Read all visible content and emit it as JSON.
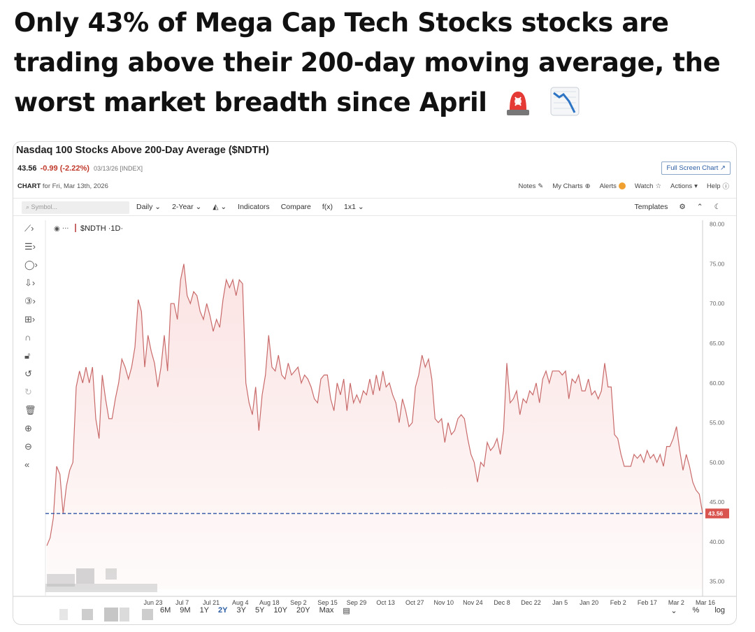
{
  "headline": "Only 43% of Mega Cap Tech Stocks stocks are trading above their 200-day moving average, the worst market breadth since April",
  "emojis": [
    "rotating-light-icon",
    "chart-decreasing-icon"
  ],
  "chart_header": {
    "title": "Nasdaq 100 Stocks Above 200-Day Average ($NDTH)",
    "price": "43.56",
    "change": "-0.99 (-2.22%)",
    "meta": "03/13/26 [INDEX]",
    "fullscreen_label": "Full Screen Chart ↗",
    "chart_label": "CHART",
    "chart_for": "for Fri, Mar 13th, 2026"
  },
  "top_links": [
    "Notes",
    "My Charts",
    "Alerts",
    "Watch",
    "Actions",
    "Help"
  ],
  "toolbar": {
    "symbol_placeholder": "Symbol...",
    "items": [
      "Daily ⌄",
      "2-Year ⌄",
      "⌄",
      "Indicators",
      "Compare",
      "f(x)",
      "1x1 ⌄"
    ],
    "templates": "Templates"
  },
  "side_tools": [
    "line-tool-icon",
    "text-tool-icon",
    "shape-tool-icon",
    "arrow-tool-icon",
    "number-tool-icon",
    "measure-tool-icon",
    "magnet-icon",
    "lock-icon",
    "undo-icon",
    "redo-icon",
    "trash-icon",
    "zoom-in-icon",
    "zoom-out-icon",
    "collapse-icon"
  ],
  "periods": [
    "6M",
    "9M",
    "1Y",
    "2Y",
    "3Y",
    "5Y",
    "10Y",
    "20Y",
    "Max"
  ],
  "active_period": "2Y",
  "bottom_right": [
    "%",
    "log"
  ],
  "colors": {
    "line": "#c96a6a",
    "fill": "#fbe3e3",
    "dash": "#3a5fa8",
    "last_price_bg": "#d9534f"
  },
  "chart_data": {
    "type": "area",
    "series_label": "$NDTH ·1D·",
    "x_tick_labels": [
      "Jun 23",
      "Jul 7",
      "Jul 21",
      "Aug 4",
      "Aug 18",
      "Sep 2",
      "Sep 15",
      "Sep 29",
      "Oct 13",
      "Oct 27",
      "Nov 10",
      "Nov 24",
      "Dec 8",
      "Dec 22",
      "Jan 5",
      "Jan 20",
      "Feb 2",
      "Feb 17",
      "Mar 2",
      "Mar 16"
    ],
    "y_ticks": [
      35,
      40,
      45,
      50,
      55,
      60,
      65,
      70,
      75,
      80
    ],
    "ylim": [
      34,
      80.5
    ],
    "last_value": 43.56,
    "grid": false,
    "values": [
      39.5,
      40.5,
      43,
      49.5,
      48.5,
      43.5,
      47,
      49,
      50,
      59.5,
      61.5,
      60,
      62,
      60,
      62,
      55.5,
      53,
      61,
      58,
      55.5,
      55.5,
      58,
      60,
      63,
      62,
      60.5,
      62,
      64.5,
      70.5,
      69,
      62,
      66,
      64,
      62.5,
      59.5,
      62,
      66,
      61.5,
      70,
      70,
      68,
      73,
      75,
      71,
      70,
      71.5,
      71,
      69,
      68,
      70,
      68.5,
      66.5,
      68,
      67,
      70.5,
      73,
      72,
      73,
      71,
      73,
      72.5,
      60,
      57.5,
      56,
      59.5,
      54,
      58.5,
      61,
      66,
      62,
      61.5,
      63.5,
      61,
      60.5,
      62.5,
      61,
      61.5,
      62,
      60,
      61,
      60.5,
      59.5,
      58,
      57.5,
      60.5,
      61,
      61,
      58,
      56.5,
      60,
      58.5,
      60.5,
      56.5,
      60,
      57.5,
      58.5,
      57.5,
      59,
      58.5,
      60.5,
      58.5,
      61,
      59,
      61.5,
      59.5,
      60,
      58.5,
      57.5,
      55,
      58,
      56.5,
      54.5,
      55,
      59.5,
      61,
      63.5,
      62,
      63,
      60.5,
      55.5,
      55,
      55.5,
      52.5,
      55,
      53.5,
      54,
      55.5,
      56,
      55.5,
      53,
      51,
      50,
      47.5,
      50,
      49.5,
      52.5,
      51.5,
      52,
      53,
      51,
      54,
      62.5,
      57.5,
      58,
      59,
      56,
      58,
      57.5,
      59,
      58.5,
      60,
      57.5,
      60.5,
      61.5,
      60,
      61.5,
      61.5,
      61.5,
      61,
      61.5,
      58,
      60.5,
      60,
      61,
      59,
      59,
      60.5,
      58.5,
      59,
      58,
      59,
      62.5,
      59.5,
      59.5,
      53.5,
      53,
      51,
      49.5,
      49.5,
      49.5,
      51,
      50.5,
      51,
      50,
      51.5,
      50.5,
      51,
      50,
      51,
      49.5,
      52,
      52,
      53,
      54.5,
      51.5,
      49,
      51,
      49.5,
      47.5,
      46.5,
      46,
      43.6
    ]
  }
}
